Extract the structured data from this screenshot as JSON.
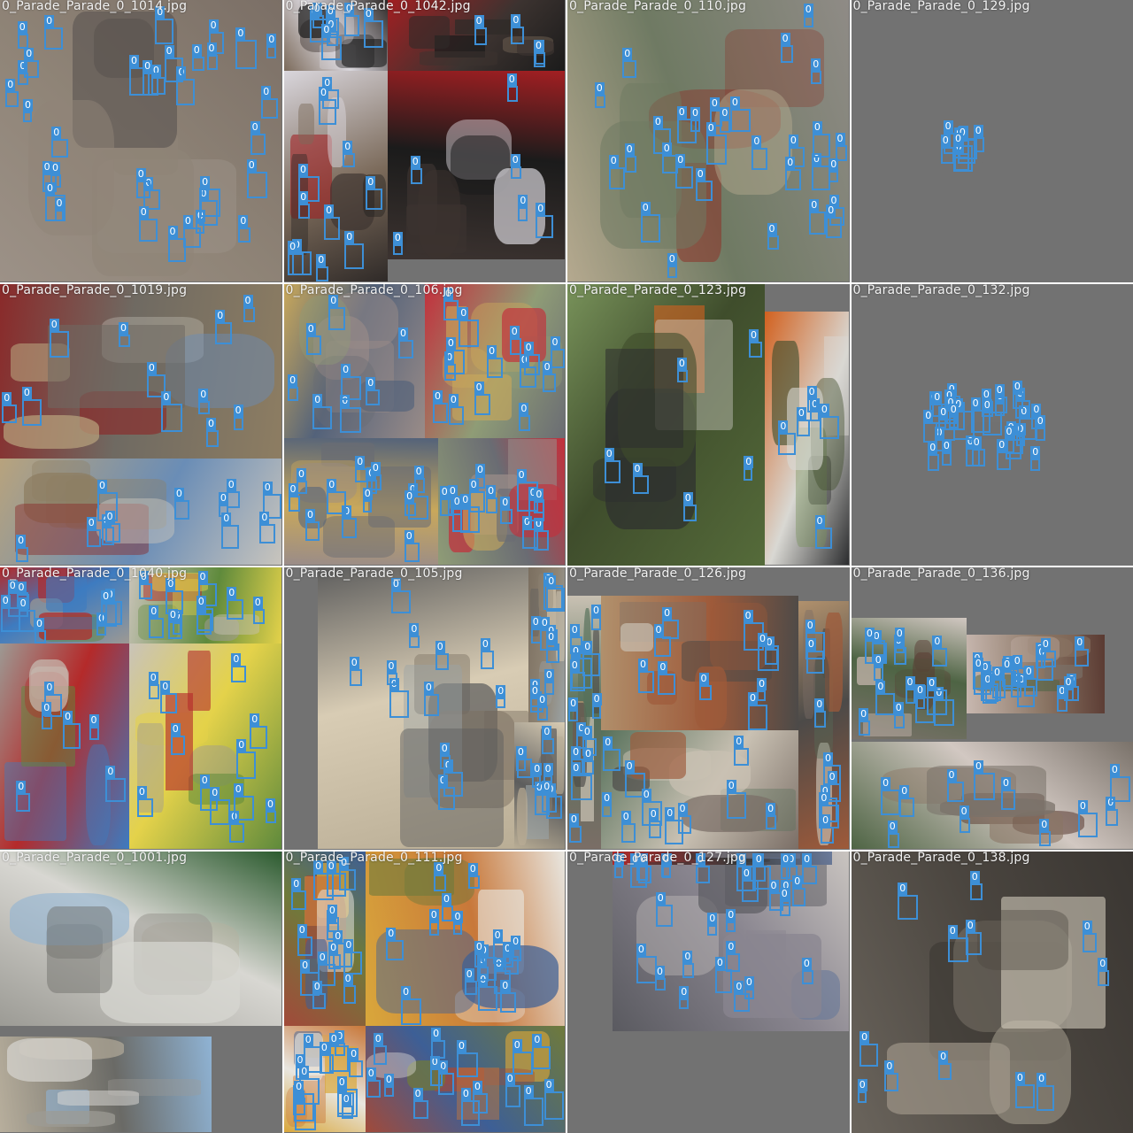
{
  "colors": {
    "box": "#3d8fd6",
    "label_text": "#ffffff",
    "pad_gray": "#727272",
    "title_text": "#f2f2f2"
  },
  "class_label": "0",
  "cells": [
    {
      "title": "0_Parade_Parade_0_1014.jpg",
      "palette": [
        "#7b6f66",
        "#5b5450",
        "#8f8477",
        "#4a4a4a",
        "#9c9187",
        "#6d655c"
      ],
      "faces": 34
    },
    {
      "title": "0_Parade_Parade_0_1042.jpg",
      "palette": [
        "#2f2a28",
        "#a21f22",
        "#d9d6dc",
        "#3c3330",
        "#7b6a5a",
        "#1b1b1b"
      ],
      "faces": 28
    },
    {
      "title": "0_Parade_Parade_0_110.jpg",
      "palette": [
        "#8f8b86",
        "#a9a49f",
        "#6f7a63",
        "#8a3a2e",
        "#b5a98f",
        "#5e5a58"
      ],
      "faces": 30
    },
    {
      "title": "0_Parade_Parade_0_129.jpg",
      "palette": [
        "#727272"
      ],
      "faces": 8
    },
    {
      "title": "0_Parade_Parade_0_1019.jpg",
      "palette": [
        "#8d7d62",
        "#b8a37d",
        "#6f6a62",
        "#6a8db6",
        "#8a2a2a",
        "#c9c5bd"
      ],
      "faces": 22
    },
    {
      "title": "0_Parade_Parade_0_106.jpg",
      "palette": [
        "#9a8c88",
        "#c3303c",
        "#53627a",
        "#8f9c76",
        "#c9a85b",
        "#6a6c73"
      ],
      "faces": 48
    },
    {
      "title": "0_Parade_Parade_0_123.jpg",
      "palette": [
        "#556b3a",
        "#d2611f",
        "#3f4d2c",
        "#d9d8d3",
        "#78925a",
        "#2c2d2f"
      ],
      "faces": 12
    },
    {
      "title": "0_Parade_Parade_0_132.jpg",
      "palette": [
        "#727272"
      ],
      "faces": 30
    },
    {
      "title": "0_Parade_Parade_0_1040.jpg",
      "palette": [
        "#9d9993",
        "#c9c3b9",
        "#3d7bc0",
        "#5f8a3c",
        "#b42a2a",
        "#e4d24a"
      ],
      "faces": 36
    },
    {
      "title": "0_Parade_Parade_0_105.jpg",
      "palette": [
        "#b9ad95",
        "#7b6f60",
        "#d8ccb4",
        "#8f8474",
        "#5d5d5d",
        "#9aa3a6"
      ],
      "faces": 30
    },
    {
      "title": "0_Parade_Parade_0_126.jpg",
      "palette": [
        "#7a6e66",
        "#b1916d",
        "#56705a",
        "#9e5a3a",
        "#c9c1b3",
        "#4c4a48"
      ],
      "faces": 42
    },
    {
      "title": "0_Parade_Parade_0_136.jpg",
      "palette": [
        "#7a726a",
        "#c8b8b0",
        "#4e6444",
        "#8a7564",
        "#d2c8c2",
        "#5a3a32"
      ],
      "faces": 44
    },
    {
      "title": "0_Parade_Parade_0_1001.jpg",
      "palette": [
        "#9c9b95",
        "#b7ae9c",
        "#d8d7d2",
        "#6a6a66",
        "#2c5b2f",
        "#8fb3d4"
      ],
      "faces": 0
    },
    {
      "title": "0_Parade_Parade_0_111.jpg",
      "palette": [
        "#a14a3a",
        "#d9a73b",
        "#6f7a3b",
        "#c8783a",
        "#3d5f96",
        "#e8e6e0"
      ],
      "faces": 60
    },
    {
      "title": "0_Parade_Parade_0_127.jpg",
      "palette": [
        "#5a5a60",
        "#b52a2a",
        "#8a8690",
        "#3a3a3a",
        "#c9c4c0",
        "#6a7a9a"
      ],
      "faces": 30
    },
    {
      "title": "0_Parade_Parade_0_138.jpg",
      "palette": [
        "#6a645c",
        "#8a8278",
        "#4a453f",
        "#a29a8c",
        "#3a3632",
        "#d8d2c2"
      ],
      "faces": 12
    }
  ]
}
